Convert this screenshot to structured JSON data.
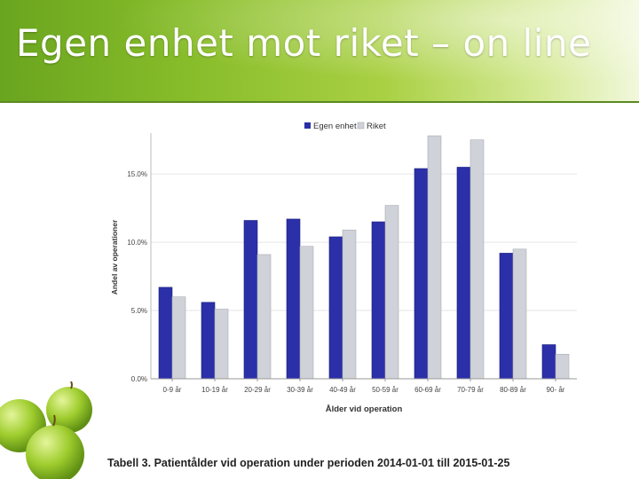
{
  "slide": {
    "title": "Egen enhet mot riket – on line",
    "caption": "Tabell 3. Patientålder vid operation under perioden 2014-01-01 till 2015-01-25"
  },
  "colors": {
    "egen": "#2b2fa8",
    "riket": "#cfd2d8",
    "header_green": "#88bd2a"
  },
  "chart_data": {
    "type": "bar",
    "categories": [
      "0-9 år",
      "10-19 år",
      "20-29 år",
      "30-39 år",
      "40-49 år",
      "50-59 år",
      "60-69 år",
      "70-79 år",
      "80-89 år",
      "90- år"
    ],
    "series": [
      {
        "name": "Egen enhet",
        "values": [
          6.7,
          5.6,
          11.6,
          11.7,
          10.4,
          11.5,
          15.4,
          15.5,
          9.2,
          2.5
        ]
      },
      {
        "name": "Riket",
        "values": [
          6.0,
          5.1,
          9.1,
          9.7,
          10.9,
          12.7,
          17.8,
          17.5,
          9.5,
          1.8
        ]
      }
    ],
    "yticks": [
      "0.0%",
      "5.0%",
      "10.0%",
      "15.0%"
    ],
    "ytick_values": [
      0,
      5,
      10,
      15
    ],
    "ylim": [
      0,
      18
    ],
    "xlabel": "Ålder vid operation",
    "ylabel": "Andel av operationer",
    "legend_position": "top",
    "grid": true
  }
}
